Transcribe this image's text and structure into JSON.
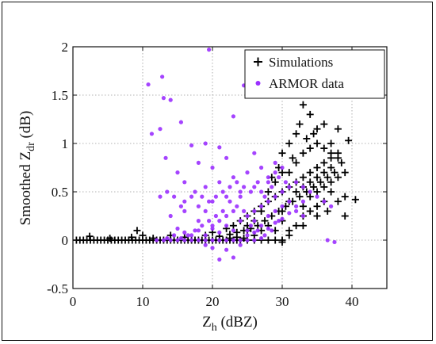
{
  "chart_data": {
    "type": "scatter",
    "x_title_main": "Z",
    "x_title_sub": "h",
    "x_title_unit": " (dBZ)",
    "y_title_main": "Smoothed Z",
    "y_title_sub": "dr",
    "y_title_unit": " (dB)",
    "xlim": [
      0,
      45
    ],
    "ylim": [
      -0.5,
      2
    ],
    "x_ticks": [
      0,
      10,
      20,
      30,
      40
    ],
    "x_tick_labels": [
      "0",
      "10",
      "20",
      "30",
      "40"
    ],
    "y_ticks": [
      -0.5,
      0,
      0.5,
      1,
      1.5,
      2
    ],
    "y_tick_labels": [
      "-0.5",
      "0",
      "0.5",
      "1",
      "1.5",
      "2"
    ],
    "grid": true,
    "legend_position": "top-right",
    "series": [
      {
        "name": "Simulations",
        "marker": "plus",
        "color": "#000000",
        "points": [
          [
            0.5,
            0.0
          ],
          [
            1,
            0.0
          ],
          [
            1.5,
            0.0
          ],
          [
            2,
            0.0
          ],
          [
            2.5,
            0.0
          ],
          [
            3,
            0.0
          ],
          [
            3.5,
            0.0
          ],
          [
            4,
            0.0
          ],
          [
            4.5,
            0.0
          ],
          [
            5,
            0.0
          ],
          [
            5.5,
            0.0
          ],
          [
            6,
            0.0
          ],
          [
            6.5,
            0.0
          ],
          [
            7,
            0.0
          ],
          [
            7.5,
            0.0
          ],
          [
            8,
            0.0
          ],
          [
            8.5,
            0.0
          ],
          [
            9,
            0.0
          ],
          [
            9.5,
            0.0
          ],
          [
            10,
            0.0
          ],
          [
            10.5,
            0.0
          ],
          [
            11,
            0.0
          ],
          [
            11.5,
            0.0
          ],
          [
            12,
            0.0
          ],
          [
            12.5,
            0.0
          ],
          [
            13,
            0.0
          ],
          [
            13.5,
            0.0
          ],
          [
            14,
            0.0
          ],
          [
            14.5,
            0.0
          ],
          [
            15,
            0.0
          ],
          [
            15.5,
            0.0
          ],
          [
            16,
            0.0
          ],
          [
            16.5,
            0.0
          ],
          [
            17,
            0.0
          ],
          [
            17.5,
            0.0
          ],
          [
            18,
            0.0
          ],
          [
            18.5,
            0.0
          ],
          [
            19,
            0.0
          ],
          [
            19.5,
            0.0
          ],
          [
            20,
            0.0
          ],
          [
            20.5,
            0.0
          ],
          [
            21,
            0.0
          ],
          [
            21.5,
            0.0
          ],
          [
            22,
            0.0
          ],
          [
            22.5,
            0.0
          ],
          [
            23,
            0.0
          ],
          [
            23.5,
            0.0
          ],
          [
            24,
            0.0
          ],
          [
            25,
            0.0
          ],
          [
            26,
            0.0
          ],
          [
            27,
            0.0
          ],
          [
            28,
            0.0
          ],
          [
            29,
            0.0
          ],
          [
            30,
            0.0
          ],
          [
            2.4,
            0.04
          ],
          [
            5.3,
            0.02
          ],
          [
            8.4,
            0.03
          ],
          [
            9.2,
            0.1
          ],
          [
            10,
            0.05
          ],
          [
            11.5,
            0.02
          ],
          [
            14,
            0.05
          ],
          [
            16,
            0.03
          ],
          [
            19,
            0.05
          ],
          [
            20,
            0.08
          ],
          [
            21,
            0.04
          ],
          [
            22,
            0.12
          ],
          [
            22.5,
            0.06
          ],
          [
            23,
            0.15
          ],
          [
            23.5,
            0.08
          ],
          [
            24,
            0.2
          ],
          [
            24.5,
            0.1
          ],
          [
            25,
            0.25
          ],
          [
            25.5,
            0.12
          ],
          [
            26,
            0.3
          ],
          [
            26.5,
            0.15
          ],
          [
            27,
            0.35
          ],
          [
            27.5,
            0.2
          ],
          [
            28,
            0.4
          ],
          [
            28.5,
            0.25
          ],
          [
            29,
            0.45
          ],
          [
            29.5,
            0.3
          ],
          [
            30,
            0.5
          ],
          [
            30.5,
            0.35
          ],
          [
            31,
            0.55
          ],
          [
            31.5,
            0.4
          ],
          [
            32,
            0.6
          ],
          [
            32.5,
            0.45
          ],
          [
            33,
            0.65
          ],
          [
            33.5,
            0.5
          ],
          [
            34,
            0.7
          ],
          [
            34.5,
            0.55
          ],
          [
            35,
            0.75
          ],
          [
            35.5,
            0.6
          ],
          [
            36,
            0.8
          ],
          [
            36.5,
            0.65
          ],
          [
            37,
            0.85
          ],
          [
            37.5,
            0.7
          ],
          [
            38,
            0.9
          ],
          [
            38.5,
            0.8
          ],
          [
            30,
            0.9
          ],
          [
            31,
            1.0
          ],
          [
            32,
            1.1
          ],
          [
            33,
            1.4
          ],
          [
            34,
            1.3
          ],
          [
            35,
            1.15
          ],
          [
            36,
            1.2
          ],
          [
            37,
            1.0
          ],
          [
            38,
            1.15
          ],
          [
            39,
            0.45
          ],
          [
            39.5,
            1.03
          ],
          [
            40.5,
            0.42
          ],
          [
            39,
            0.25
          ],
          [
            37,
            0.5
          ],
          [
            36,
            0.4
          ],
          [
            35,
            0.35
          ],
          [
            34,
            0.3
          ],
          [
            33,
            0.25
          ],
          [
            32,
            0.15
          ],
          [
            31,
            0.1
          ],
          [
            30,
            0.2
          ],
          [
            29,
            0.1
          ],
          [
            28,
            0.15
          ],
          [
            27,
            0.1
          ],
          [
            26,
            0.05
          ],
          [
            25,
            0.1
          ],
          [
            24.5,
            0.02
          ],
          [
            23.5,
            0.03
          ],
          [
            22.5,
            0.02
          ],
          [
            31,
            0.7
          ],
          [
            32,
            0.8
          ],
          [
            33,
            0.9
          ],
          [
            34,
            0.95
          ],
          [
            35,
            1.0
          ],
          [
            36,
            0.95
          ],
          [
            37,
            0.9
          ],
          [
            38,
            0.85
          ],
          [
            30,
            0.3
          ],
          [
            31,
            0.4
          ],
          [
            32,
            0.5
          ],
          [
            33,
            0.55
          ],
          [
            34,
            0.6
          ],
          [
            35,
            0.65
          ],
          [
            36,
            0.7
          ],
          [
            37,
            0.75
          ],
          [
            29,
            0.6
          ],
          [
            30,
            0.7
          ],
          [
            28,
            0.5
          ],
          [
            27,
            0.3
          ],
          [
            26,
            0.2
          ],
          [
            25,
            0.15
          ],
          [
            33,
            0.35
          ],
          [
            34,
            0.45
          ],
          [
            35,
            0.5
          ],
          [
            36,
            0.55
          ],
          [
            37,
            0.6
          ],
          [
            38,
            0.65
          ],
          [
            39,
            0.7
          ],
          [
            30,
            -0.02
          ],
          [
            31,
            0.05
          ],
          [
            33,
            0.15
          ],
          [
            35,
            0.25
          ],
          [
            36.5,
            0.3
          ],
          [
            38,
            0.4
          ],
          [
            32.5,
            1.2
          ],
          [
            33.5,
            1.05
          ],
          [
            34.5,
            1.1
          ],
          [
            31.5,
            0.85
          ],
          [
            29.5,
            0.75
          ],
          [
            28.5,
            0.65
          ]
        ]
      },
      {
        "name": "ARMOR data",
        "marker": "dot",
        "color": "#9b30ff",
        "points": [
          [
            19.5,
            1.97
          ],
          [
            12.8,
            1.69
          ],
          [
            10.8,
            1.61
          ],
          [
            24.5,
            1.6
          ],
          [
            13,
            1.47
          ],
          [
            14,
            1.45
          ],
          [
            23,
            1.28
          ],
          [
            15.5,
            1.22
          ],
          [
            12.5,
            1.15
          ],
          [
            11.3,
            1.1
          ],
          [
            19,
            1.0
          ],
          [
            17,
            0.98
          ],
          [
            21,
            0.96
          ],
          [
            26,
            0.9
          ],
          [
            22,
            0.85
          ],
          [
            13.3,
            0.85
          ],
          [
            18,
            0.8
          ],
          [
            29,
            0.8
          ],
          [
            15,
            0.7
          ],
          [
            20,
            0.75
          ],
          [
            16,
            0.6
          ],
          [
            17.5,
            0.5
          ],
          [
            19,
            0.55
          ],
          [
            21,
            0.6
          ],
          [
            23,
            0.65
          ],
          [
            25,
            0.7
          ],
          [
            27,
            0.75
          ],
          [
            28,
            0.6
          ],
          [
            26,
            0.55
          ],
          [
            24,
            0.5
          ],
          [
            22,
            0.45
          ],
          [
            20,
            0.4
          ],
          [
            18,
            0.35
          ],
          [
            16,
            0.3
          ],
          [
            14,
            0.25
          ],
          [
            15,
            0.12
          ],
          [
            16,
            0.08
          ],
          [
            17,
            0.05
          ],
          [
            18,
            0.1
          ],
          [
            19,
            0.05
          ],
          [
            20,
            0.12
          ],
          [
            21,
            0.08
          ],
          [
            22,
            0.15
          ],
          [
            23,
            0.1
          ],
          [
            24,
            0.2
          ],
          [
            25,
            0.25
          ],
          [
            26,
            0.3
          ],
          [
            27,
            0.35
          ],
          [
            28,
            0.4
          ],
          [
            29,
            0.45
          ],
          [
            30,
            0.5
          ],
          [
            31,
            0.55
          ],
          [
            32,
            0.6
          ],
          [
            33,
            0.55
          ],
          [
            34,
            0.5
          ],
          [
            35,
            0.45
          ],
          [
            36,
            0.4
          ],
          [
            37,
            0.35
          ],
          [
            37.5,
            -0.02
          ],
          [
            36.5,
            0.0
          ],
          [
            22,
            -0.1
          ],
          [
            21,
            -0.2
          ],
          [
            23,
            -0.18
          ],
          [
            19,
            -0.05
          ],
          [
            20,
            -0.08
          ],
          [
            24,
            -0.05
          ],
          [
            25,
            0.1
          ],
          [
            26,
            0.2
          ],
          [
            27,
            0.15
          ],
          [
            28,
            0.25
          ],
          [
            29,
            0.3
          ],
          [
            30,
            0.35
          ],
          [
            31,
            0.4
          ],
          [
            32,
            0.3
          ],
          [
            33,
            0.25
          ],
          [
            29.5,
            0.2
          ],
          [
            28.5,
            0.1
          ],
          [
            27.5,
            0.05
          ],
          [
            26.5,
            0.1
          ],
          [
            25.5,
            0.15
          ],
          [
            24.5,
            0.3
          ],
          [
            23.5,
            0.35
          ],
          [
            22.5,
            0.4
          ],
          [
            21.5,
            0.3
          ],
          [
            20.5,
            0.25
          ],
          [
            19.5,
            0.2
          ],
          [
            18.5,
            0.15
          ],
          [
            17.5,
            0.1
          ],
          [
            16.5,
            0.05
          ],
          [
            15.5,
            0.02
          ],
          [
            14.5,
            0.05
          ],
          [
            13.5,
            0.02
          ],
          [
            12,
            0.0
          ],
          [
            13,
            0.0
          ],
          [
            14,
            0.0
          ],
          [
            15,
            0.0
          ],
          [
            16,
            0.0
          ],
          [
            17,
            0.0
          ],
          [
            18,
            0.0
          ],
          [
            19,
            0.0
          ],
          [
            20,
            0.0
          ],
          [
            21,
            0.0
          ],
          [
            22,
            0.0
          ],
          [
            23,
            0.0
          ],
          [
            24,
            0.0
          ],
          [
            25,
            0.0
          ],
          [
            26,
            0.0
          ],
          [
            25.5,
            0.5
          ],
          [
            26.5,
            0.6
          ],
          [
            27.5,
            0.45
          ],
          [
            28.5,
            0.55
          ],
          [
            29.5,
            0.65
          ],
          [
            30.5,
            0.6
          ],
          [
            24,
            0.45
          ],
          [
            23,
            0.3
          ],
          [
            22,
            0.25
          ],
          [
            21,
            0.2
          ],
          [
            20,
            0.15
          ],
          [
            19,
            0.3
          ],
          [
            18,
            0.2
          ],
          [
            17,
            0.45
          ],
          [
            16,
            0.4
          ],
          [
            15.5,
            0.35
          ],
          [
            14.5,
            0.45
          ],
          [
            13.5,
            0.5
          ],
          [
            12.5,
            0.45
          ],
          [
            25,
            0.05
          ],
          [
            26,
            0.08
          ],
          [
            27,
            0.02
          ],
          [
            28,
            0.12
          ],
          [
            29,
            0.18
          ],
          [
            30,
            0.22
          ],
          [
            31,
            0.28
          ],
          [
            32,
            0.35
          ],
          [
            33,
            0.4
          ],
          [
            27,
            0.5
          ],
          [
            28,
            0.65
          ],
          [
            29,
            0.7
          ],
          [
            30,
            0.75
          ],
          [
            23.5,
            0.6
          ],
          [
            24.5,
            0.55
          ],
          [
            22.5,
            0.55
          ],
          [
            21.5,
            0.5
          ],
          [
            20.5,
            0.45
          ],
          [
            19.5,
            0.4
          ],
          [
            18.5,
            0.45
          ]
        ]
      }
    ]
  }
}
